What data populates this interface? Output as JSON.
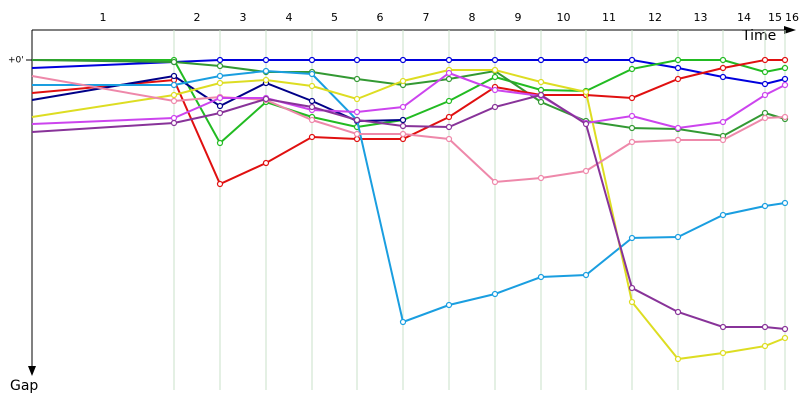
{
  "chart_data": {
    "type": "line",
    "x_label": "Time",
    "y_label": "Gap",
    "categories": [
      "1",
      "2",
      "3",
      "4",
      "5",
      "6",
      "7",
      "8",
      "9",
      "10",
      "11",
      "12",
      "13",
      "14",
      "15",
      "16"
    ],
    "ylim": [
      0,
      310
    ],
    "yticks": [
      {
        "value": 0,
        "label": "+0'"
      }
    ],
    "grid": true,
    "series": [
      {
        "name": "Blue",
        "color": "#0000dd",
        "values": [
          8,
          2,
          0,
          0,
          0,
          0,
          0,
          0,
          0,
          0,
          0,
          0,
          8,
          17,
          24,
          19
        ]
      },
      {
        "name": "Green",
        "color": "#22bb22",
        "values": [
          0,
          0,
          83,
          42,
          57,
          67,
          60,
          41,
          17,
          30,
          31,
          9,
          0,
          0,
          12,
          8
        ]
      },
      {
        "name": "Dark green",
        "color": "#339933",
        "values": [
          0,
          2,
          6,
          12,
          12,
          19,
          25,
          19,
          11,
          42,
          61,
          68,
          69,
          76,
          53,
          59
        ]
      },
      {
        "name": "Red",
        "color": "#e01010",
        "values": [
          33,
          20,
          124,
          103,
          77,
          79,
          79,
          57,
          27,
          35,
          35,
          38,
          19,
          8,
          0,
          0
        ]
      },
      {
        "name": "Navy",
        "color": "#000088",
        "values": [
          40,
          16,
          46,
          23,
          41,
          61,
          60,
          null,
          null,
          null,
          null,
          null,
          null,
          null,
          null,
          null
        ]
      },
      {
        "name": "Sky blue",
        "color": "#1a9ee0",
        "values": [
          25,
          25,
          16,
          11,
          14,
          60,
          262,
          245,
          234,
          217,
          215,
          178,
          177,
          155,
          146,
          143
        ]
      },
      {
        "name": "Yellow",
        "color": "#dddd22",
        "values": [
          57,
          35,
          23,
          20,
          26,
          39,
          21,
          10,
          10,
          22,
          32,
          242,
          299,
          293,
          286,
          278
        ]
      },
      {
        "name": "Pink",
        "color": "#ee88aa",
        "values": [
          16,
          41,
          37,
          40,
          60,
          74,
          74,
          79,
          122,
          118,
          111,
          82,
          80,
          80,
          58,
          57
        ]
      },
      {
        "name": "Magenta",
        "color": "#cc44ee",
        "values": [
          64,
          58,
          38,
          38,
          50,
          52,
          47,
          13,
          30,
          36,
          63,
          56,
          68,
          62,
          35,
          25
        ]
      },
      {
        "name": "Purple",
        "color": "#883399",
        "values": [
          72,
          63,
          53,
          39,
          47,
          60,
          66,
          67,
          47,
          35,
          64,
          228,
          252,
          267,
          267,
          269
        ]
      }
    ]
  }
}
